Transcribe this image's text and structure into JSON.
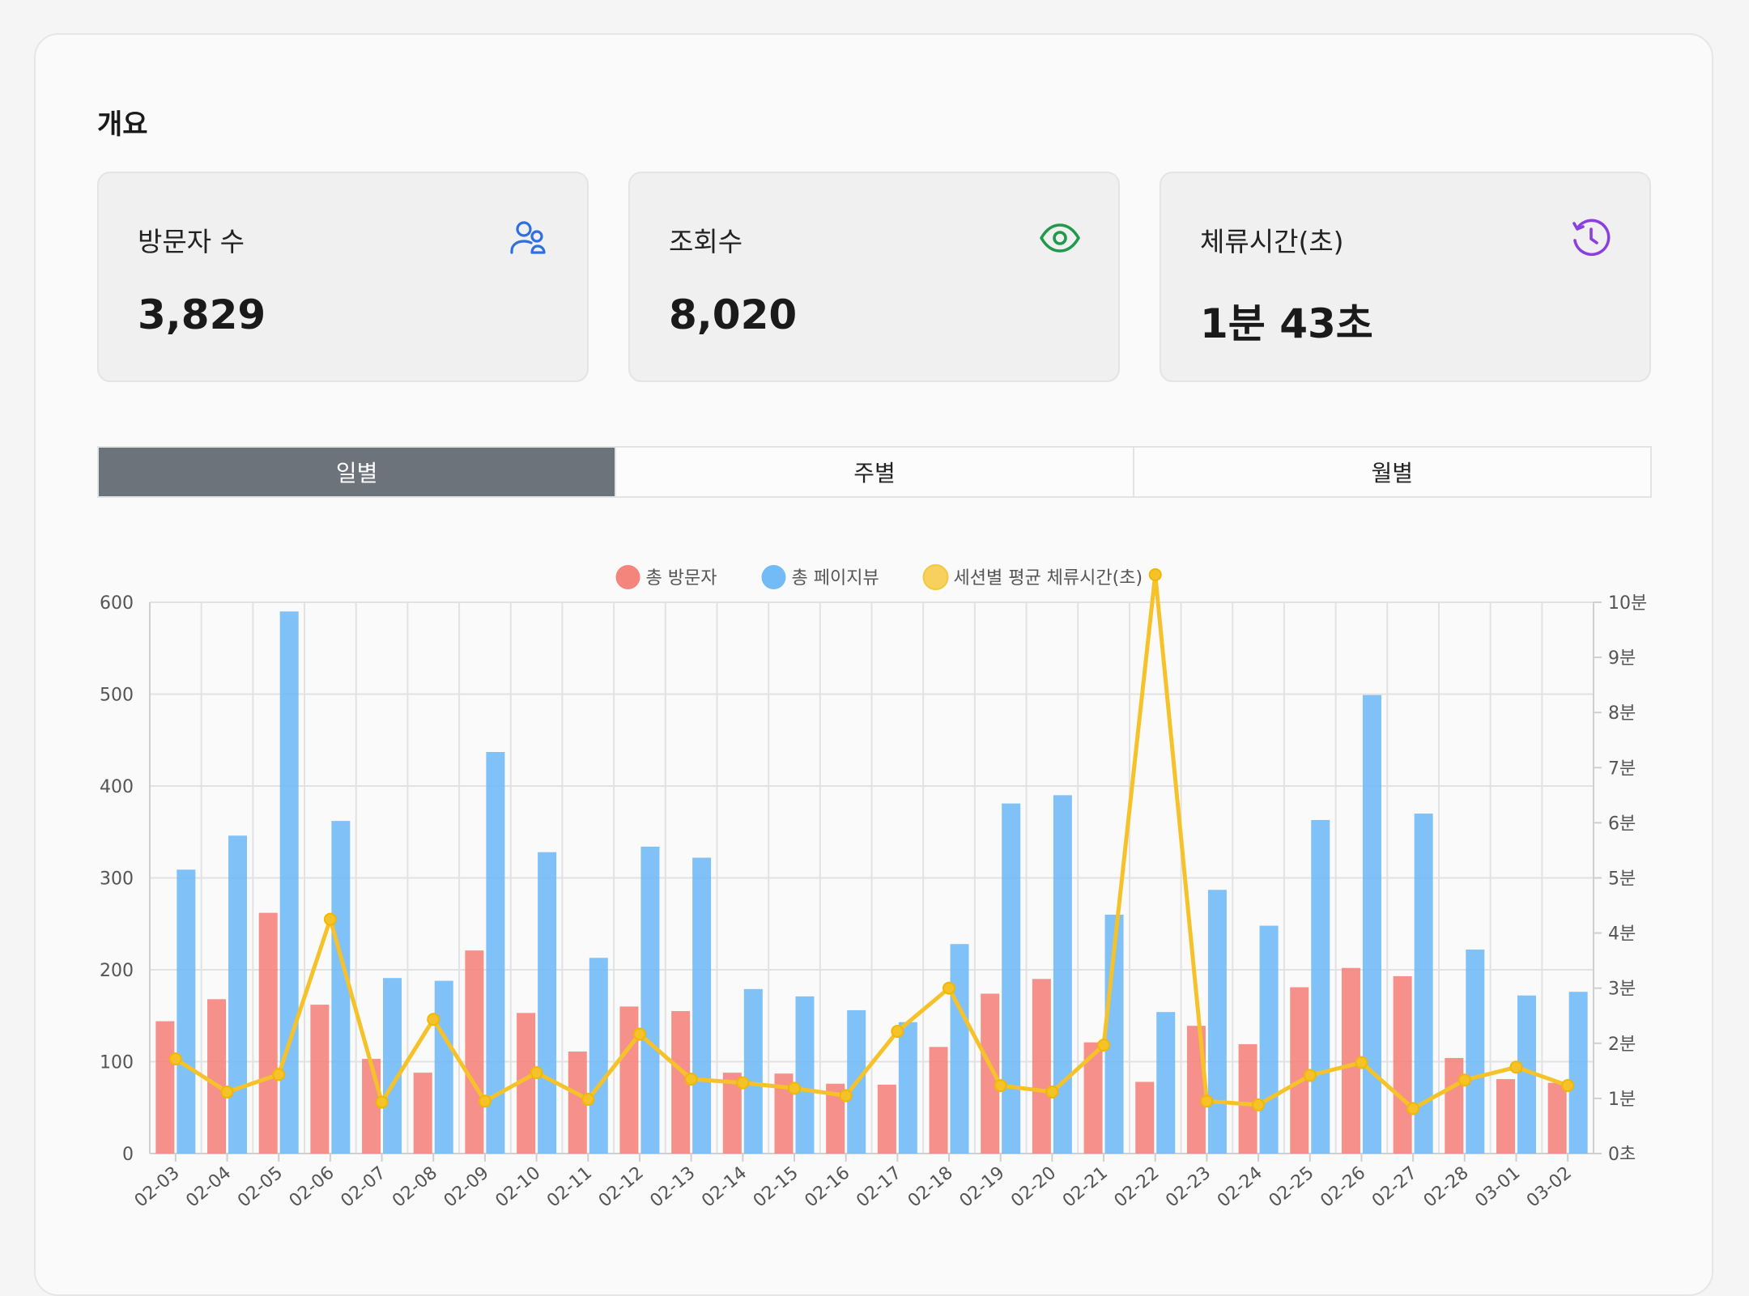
{
  "overview": {
    "title": "개요"
  },
  "cards": [
    {
      "label": "방문자 수",
      "value": "3,829",
      "icon": "users-icon",
      "color": "#2f6fe0"
    },
    {
      "label": "조회수",
      "value": "8,020",
      "icon": "eye-icon",
      "color": "#1f9a4a"
    },
    {
      "label": "체류시간(초)",
      "value": "1분 43초",
      "icon": "history-clock-icon",
      "color": "#8a3fe0"
    }
  ],
  "tabs": [
    {
      "label": "일별",
      "active": true
    },
    {
      "label": "주별",
      "active": false
    },
    {
      "label": "월별",
      "active": false
    }
  ],
  "chart_data": {
    "type": "bar",
    "title": "",
    "legend_position": "top",
    "grid": true,
    "categories": [
      "02-03",
      "02-04",
      "02-05",
      "02-06",
      "02-07",
      "02-08",
      "02-09",
      "02-10",
      "02-11",
      "02-12",
      "02-13",
      "02-14",
      "02-15",
      "02-16",
      "02-17",
      "02-18",
      "02-19",
      "02-20",
      "02-21",
      "02-22",
      "02-23",
      "02-24",
      "02-25",
      "02-26",
      "02-27",
      "02-28",
      "03-01",
      "03-02"
    ],
    "series": [
      {
        "name": "총 방문자",
        "type": "bar",
        "axis": "left",
        "color": "#f4857d",
        "values": [
          144,
          168,
          262,
          162,
          103,
          88,
          221,
          153,
          111,
          160,
          155,
          88,
          87,
          76,
          75,
          116,
          174,
          190,
          121,
          78,
          139,
          119,
          181,
          202,
          193,
          104,
          81,
          77
        ]
      },
      {
        "name": "총 페이지뷰",
        "type": "bar",
        "axis": "left",
        "color": "#72bbf6",
        "values": [
          309,
          346,
          590,
          362,
          191,
          188,
          437,
          328,
          213,
          334,
          322,
          179,
          171,
          156,
          143,
          228,
          381,
          390,
          260,
          154,
          287,
          248,
          363,
          499,
          370,
          222,
          172,
          176
        ]
      },
      {
        "name": "세션별 평균 체류시간(초)",
        "type": "line",
        "axis": "right",
        "color": "#f6c22a",
        "values": [
          103,
          67,
          86,
          255,
          56,
          146,
          57,
          88,
          59,
          130,
          81,
          77,
          71,
          63,
          133,
          180,
          74,
          67,
          118,
          630,
          57,
          53,
          85,
          99,
          49,
          80,
          94,
          74
        ]
      }
    ],
    "y_left": {
      "min": 0,
      "max": 600,
      "ticks": [
        0,
        100,
        200,
        300,
        400,
        500,
        600
      ]
    },
    "y_right": {
      "min": 0,
      "max": 600,
      "ticks": [
        {
          "v": 0,
          "label": "0초"
        },
        {
          "v": 60,
          "label": "1분"
        },
        {
          "v": 120,
          "label": "2분"
        },
        {
          "v": 180,
          "label": "3분"
        },
        {
          "v": 240,
          "label": "4분"
        },
        {
          "v": 300,
          "label": "5분"
        },
        {
          "v": 360,
          "label": "6분"
        },
        {
          "v": 420,
          "label": "7분"
        },
        {
          "v": 480,
          "label": "8분"
        },
        {
          "v": 540,
          "label": "9분"
        },
        {
          "v": 600,
          "label": "10분"
        }
      ]
    }
  }
}
